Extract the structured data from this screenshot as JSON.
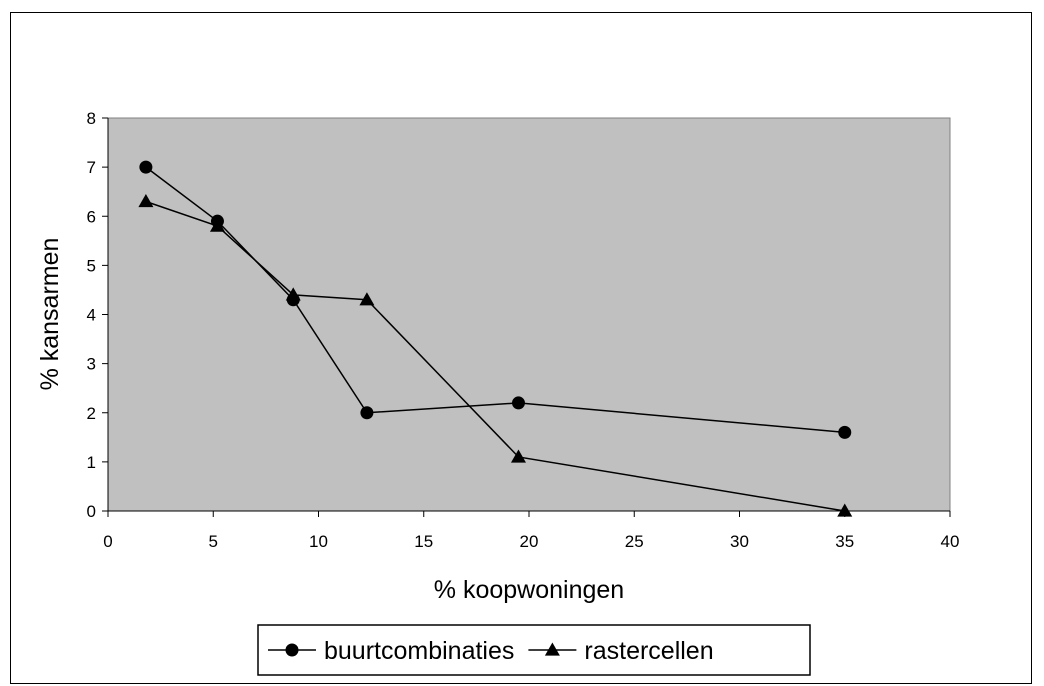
{
  "chart_data": {
    "type": "line",
    "title": "",
    "xlabel": "% koopwoningen",
    "ylabel": "% kansarmen",
    "xlim": [
      0,
      40
    ],
    "ylim": [
      0,
      8
    ],
    "x_ticks": [
      "0",
      "5",
      "10",
      "15",
      "20",
      "25",
      "30",
      "35",
      "40"
    ],
    "y_ticks": [
      "0",
      "1",
      "2",
      "3",
      "4",
      "5",
      "6",
      "7",
      "8"
    ],
    "grid": false,
    "plot_background": "#c0c0c0",
    "legend_position": "bottom",
    "series": [
      {
        "name": "buurtcombinaties",
        "marker": "circle",
        "color": "#000000",
        "x": [
          1.8,
          5.2,
          8.8,
          12.3,
          19.5,
          35
        ],
        "y": [
          7.0,
          5.9,
          4.3,
          2.0,
          2.2,
          1.6
        ]
      },
      {
        "name": "rastercellen",
        "marker": "triangle",
        "color": "#000000",
        "x": [
          1.8,
          5.2,
          8.8,
          12.3,
          19.5,
          35
        ],
        "y": [
          6.3,
          5.8,
          4.4,
          4.3,
          1.1,
          0.0
        ]
      }
    ]
  }
}
